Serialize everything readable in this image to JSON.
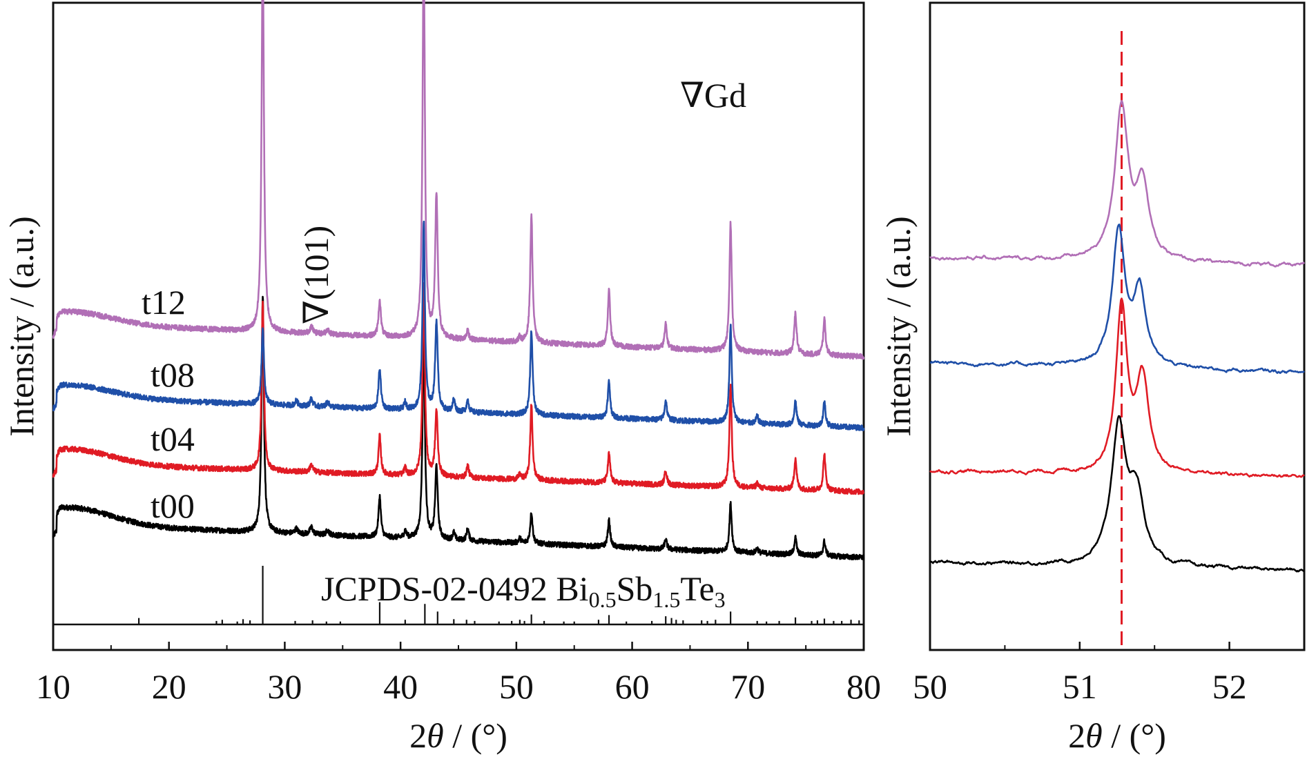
{
  "chart_data": [
    {
      "type": "line",
      "title": "",
      "xlabel": "2θ / (°)",
      "ylabel": "Intensity / (a.u.)",
      "xlim": [
        10,
        80
      ],
      "xticks": [
        10,
        20,
        30,
        40,
        50,
        60,
        70,
        80
      ],
      "y_ticks_shown": false,
      "grid": false,
      "legend": "none",
      "annotations": [
        {
          "text": "∇Gd",
          "x": 52.5
        },
        {
          "text": "∇(101)",
          "x": 32.5
        }
      ],
      "reference": {
        "label_prefix": "JCPDS-02-0492 Bi",
        "label_parts": [
          [
            "0.5",
            "Sb"
          ],
          [
            "1.5",
            "Te"
          ],
          [
            "3",
            ""
          ]
        ],
        "lines": [
          {
            "x": 17.4,
            "h": 0.11
          },
          {
            "x": 24.1,
            "h": 0.06
          },
          {
            "x": 24.6,
            "h": 0.08
          },
          {
            "x": 25.9,
            "h": 0.05
          },
          {
            "x": 26.4,
            "h": 0.09
          },
          {
            "x": 27.0,
            "h": 0.07
          },
          {
            "x": 28.1,
            "h": 1.0
          },
          {
            "x": 30.9,
            "h": 0.06
          },
          {
            "x": 32.4,
            "h": 0.07
          },
          {
            "x": 33.6,
            "h": 0.05
          },
          {
            "x": 34.8,
            "h": 0.05
          },
          {
            "x": 38.2,
            "h": 0.38
          },
          {
            "x": 40.4,
            "h": 0.08
          },
          {
            "x": 42.1,
            "h": 0.35
          },
          {
            "x": 43.2,
            "h": 0.22
          },
          {
            "x": 44.6,
            "h": 0.09
          },
          {
            "x": 45.7,
            "h": 0.08
          },
          {
            "x": 46.4,
            "h": 0.06
          },
          {
            "x": 48.5,
            "h": 0.05
          },
          {
            "x": 49.6,
            "h": 0.06
          },
          {
            "x": 50.3,
            "h": 0.08
          },
          {
            "x": 50.7,
            "h": 0.06
          },
          {
            "x": 51.3,
            "h": 0.17
          },
          {
            "x": 52.4,
            "h": 0.06
          },
          {
            "x": 54.1,
            "h": 0.05
          },
          {
            "x": 55.0,
            "h": 0.05
          },
          {
            "x": 57.1,
            "h": 0.08
          },
          {
            "x": 58.0,
            "h": 0.16
          },
          {
            "x": 59.5,
            "h": 0.05
          },
          {
            "x": 61.7,
            "h": 0.06
          },
          {
            "x": 62.9,
            "h": 0.14
          },
          {
            "x": 63.4,
            "h": 0.11
          },
          {
            "x": 63.8,
            "h": 0.08
          },
          {
            "x": 64.4,
            "h": 0.07
          },
          {
            "x": 66.0,
            "h": 0.07
          },
          {
            "x": 66.5,
            "h": 0.06
          },
          {
            "x": 67.2,
            "h": 0.08
          },
          {
            "x": 68.5,
            "h": 0.22
          },
          {
            "x": 70.8,
            "h": 0.06
          },
          {
            "x": 71.6,
            "h": 0.05
          },
          {
            "x": 72.7,
            "h": 0.06
          },
          {
            "x": 74.1,
            "h": 0.12
          },
          {
            "x": 75.5,
            "h": 0.06
          },
          {
            "x": 76.0,
            "h": 0.07
          },
          {
            "x": 76.6,
            "h": 0.1
          },
          {
            "x": 77.4,
            "h": 0.06
          },
          {
            "x": 78.1,
            "h": 0.06
          },
          {
            "x": 78.9,
            "h": 0.08
          },
          {
            "x": 79.6,
            "h": 0.07
          }
        ]
      },
      "series": [
        {
          "name": "t00",
          "color": "#000000",
          "background": {
            "start": 0.14,
            "end": 0.0,
            "hump_x": 11.5,
            "hump_h": 0.07
          },
          "peaks": [
            {
              "x": 28.1,
              "h": 0.98,
              "w": 0.12
            },
            {
              "x": 31.0,
              "h": 0.02,
              "w": 0.15
            },
            {
              "x": 32.3,
              "h": 0.03,
              "w": 0.15
            },
            {
              "x": 33.7,
              "h": 0.02,
              "w": 0.15
            },
            {
              "x": 38.2,
              "h": 0.17,
              "w": 0.12
            },
            {
              "x": 40.4,
              "h": 0.03,
              "w": 0.12
            },
            {
              "x": 42.0,
              "h": 0.86,
              "w": 0.12
            },
            {
              "x": 43.1,
              "h": 0.3,
              "w": 0.13
            },
            {
              "x": 44.6,
              "h": 0.03,
              "w": 0.12
            },
            {
              "x": 45.8,
              "h": 0.05,
              "w": 0.12
            },
            {
              "x": 50.3,
              "h": 0.02,
              "w": 0.12
            },
            {
              "x": 51.3,
              "h": 0.13,
              "w": 0.12
            },
            {
              "x": 58.0,
              "h": 0.11,
              "w": 0.12
            },
            {
              "x": 62.9,
              "h": 0.04,
              "w": 0.12
            },
            {
              "x": 68.5,
              "h": 0.2,
              "w": 0.12
            },
            {
              "x": 70.8,
              "h": 0.02,
              "w": 0.12
            },
            {
              "x": 74.1,
              "h": 0.07,
              "w": 0.12
            },
            {
              "x": 76.6,
              "h": 0.06,
              "w": 0.12
            }
          ]
        },
        {
          "name": "t04",
          "color": "#e01b24",
          "background": {
            "start": 0.12,
            "end": 0.0,
            "hump_x": 11.5,
            "hump_h": 0.06
          },
          "peaks": [
            {
              "x": 28.1,
              "h": 0.7,
              "w": 0.12
            },
            {
              "x": 32.3,
              "h": 0.03,
              "w": 0.15
            },
            {
              "x": 38.2,
              "h": 0.16,
              "w": 0.12
            },
            {
              "x": 40.4,
              "h": 0.03,
              "w": 0.12
            },
            {
              "x": 42.0,
              "h": 0.8,
              "w": 0.12
            },
            {
              "x": 43.1,
              "h": 0.27,
              "w": 0.13
            },
            {
              "x": 45.8,
              "h": 0.05,
              "w": 0.12
            },
            {
              "x": 50.3,
              "h": 0.02,
              "w": 0.12
            },
            {
              "x": 51.3,
              "h": 0.31,
              "w": 0.12
            },
            {
              "x": 58.0,
              "h": 0.12,
              "w": 0.12
            },
            {
              "x": 62.9,
              "h": 0.06,
              "w": 0.12
            },
            {
              "x": 68.5,
              "h": 0.42,
              "w": 0.12
            },
            {
              "x": 70.8,
              "h": 0.02,
              "w": 0.12
            },
            {
              "x": 74.1,
              "h": 0.13,
              "w": 0.12
            },
            {
              "x": 76.6,
              "h": 0.15,
              "w": 0.12
            }
          ]
        },
        {
          "name": "t08",
          "color": "#1f4fa8",
          "background": {
            "start": 0.13,
            "end": 0.0,
            "hump_x": 11.5,
            "hump_h": 0.05
          },
          "peaks": [
            {
              "x": 28.1,
              "h": 0.32,
              "w": 0.12
            },
            {
              "x": 31.0,
              "h": 0.02,
              "w": 0.15
            },
            {
              "x": 32.3,
              "h": 0.03,
              "w": 0.15
            },
            {
              "x": 33.7,
              "h": 0.02,
              "w": 0.15
            },
            {
              "x": 38.2,
              "h": 0.17,
              "w": 0.12
            },
            {
              "x": 40.4,
              "h": 0.03,
              "w": 0.12
            },
            {
              "x": 42.0,
              "h": 0.78,
              "w": 0.12
            },
            {
              "x": 43.1,
              "h": 0.37,
              "w": 0.13
            },
            {
              "x": 44.6,
              "h": 0.05,
              "w": 0.12
            },
            {
              "x": 45.8,
              "h": 0.05,
              "w": 0.12
            },
            {
              "x": 51.3,
              "h": 0.35,
              "w": 0.12
            },
            {
              "x": 58.0,
              "h": 0.15,
              "w": 0.12
            },
            {
              "x": 62.9,
              "h": 0.08,
              "w": 0.12
            },
            {
              "x": 68.5,
              "h": 0.4,
              "w": 0.12
            },
            {
              "x": 70.8,
              "h": 0.03,
              "w": 0.12
            },
            {
              "x": 74.1,
              "h": 0.1,
              "w": 0.12
            },
            {
              "x": 76.6,
              "h": 0.1,
              "w": 0.12
            }
          ]
        },
        {
          "name": "t12",
          "color": "#b16fb6",
          "background": {
            "start": 0.14,
            "end": 0.0,
            "hump_x": 11.5,
            "hump_h": 0.05
          },
          "peaks": [
            {
              "x": 28.1,
              "h": 1.6,
              "w": 0.12
            },
            {
              "x": 32.3,
              "h": 0.03,
              "w": 0.15
            },
            {
              "x": 33.7,
              "h": 0.02,
              "w": 0.15
            },
            {
              "x": 38.2,
              "h": 0.15,
              "w": 0.12
            },
            {
              "x": 42.0,
              "h": 1.63,
              "w": 0.12
            },
            {
              "x": 43.1,
              "h": 0.59,
              "w": 0.13
            },
            {
              "x": 45.8,
              "h": 0.04,
              "w": 0.12
            },
            {
              "x": 50.3,
              "h": 0.02,
              "w": 0.12
            },
            {
              "x": 51.3,
              "h": 0.53,
              "w": 0.12
            },
            {
              "x": 58.0,
              "h": 0.23,
              "w": 0.12
            },
            {
              "x": 62.9,
              "h": 0.1,
              "w": 0.12
            },
            {
              "x": 68.5,
              "h": 0.53,
              "w": 0.12
            },
            {
              "x": 74.1,
              "h": 0.17,
              "w": 0.12
            },
            {
              "x": 76.6,
              "h": 0.15,
              "w": 0.12
            }
          ]
        }
      ]
    },
    {
      "type": "line",
      "title": "",
      "xlabel": "2θ / (°)",
      "ylabel": "Intensity / (a.u.)",
      "xlim": [
        50,
        52.5
      ],
      "xticks": [
        50,
        51,
        52
      ],
      "y_ticks_shown": false,
      "grid": false,
      "legend": "none",
      "reference_line": {
        "x": 51.28,
        "style": "dashed",
        "color": "#e01b24"
      },
      "series": [
        {
          "name": "t00",
          "color": "#000000",
          "background": {
            "start": 0.05,
            "end": 0.0
          },
          "peaks": [
            {
              "x": 51.26,
              "h": 0.82,
              "w": 0.06
            },
            {
              "x": 51.38,
              "h": 0.4,
              "w": 0.06
            }
          ]
        },
        {
          "name": "t04",
          "color": "#e01b24",
          "background": {
            "start": 0.03,
            "end": 0.0
          },
          "peaks": [
            {
              "x": 51.28,
              "h": 1.0,
              "w": 0.045
            },
            {
              "x": 51.42,
              "h": 0.55,
              "w": 0.05
            }
          ]
        },
        {
          "name": "t08",
          "color": "#1f4fa8",
          "background": {
            "start": 0.06,
            "end": 0.0
          },
          "peaks": [
            {
              "x": 51.26,
              "h": 0.82,
              "w": 0.05
            },
            {
              "x": 51.4,
              "h": 0.45,
              "w": 0.05
            }
          ]
        },
        {
          "name": "t12",
          "color": "#b16fb6",
          "background": {
            "start": 0.05,
            "end": 0.0
          },
          "peaks": [
            {
              "x": 51.28,
              "h": 0.92,
              "w": 0.055
            },
            {
              "x": 51.42,
              "h": 0.45,
              "w": 0.05
            }
          ]
        }
      ]
    }
  ]
}
